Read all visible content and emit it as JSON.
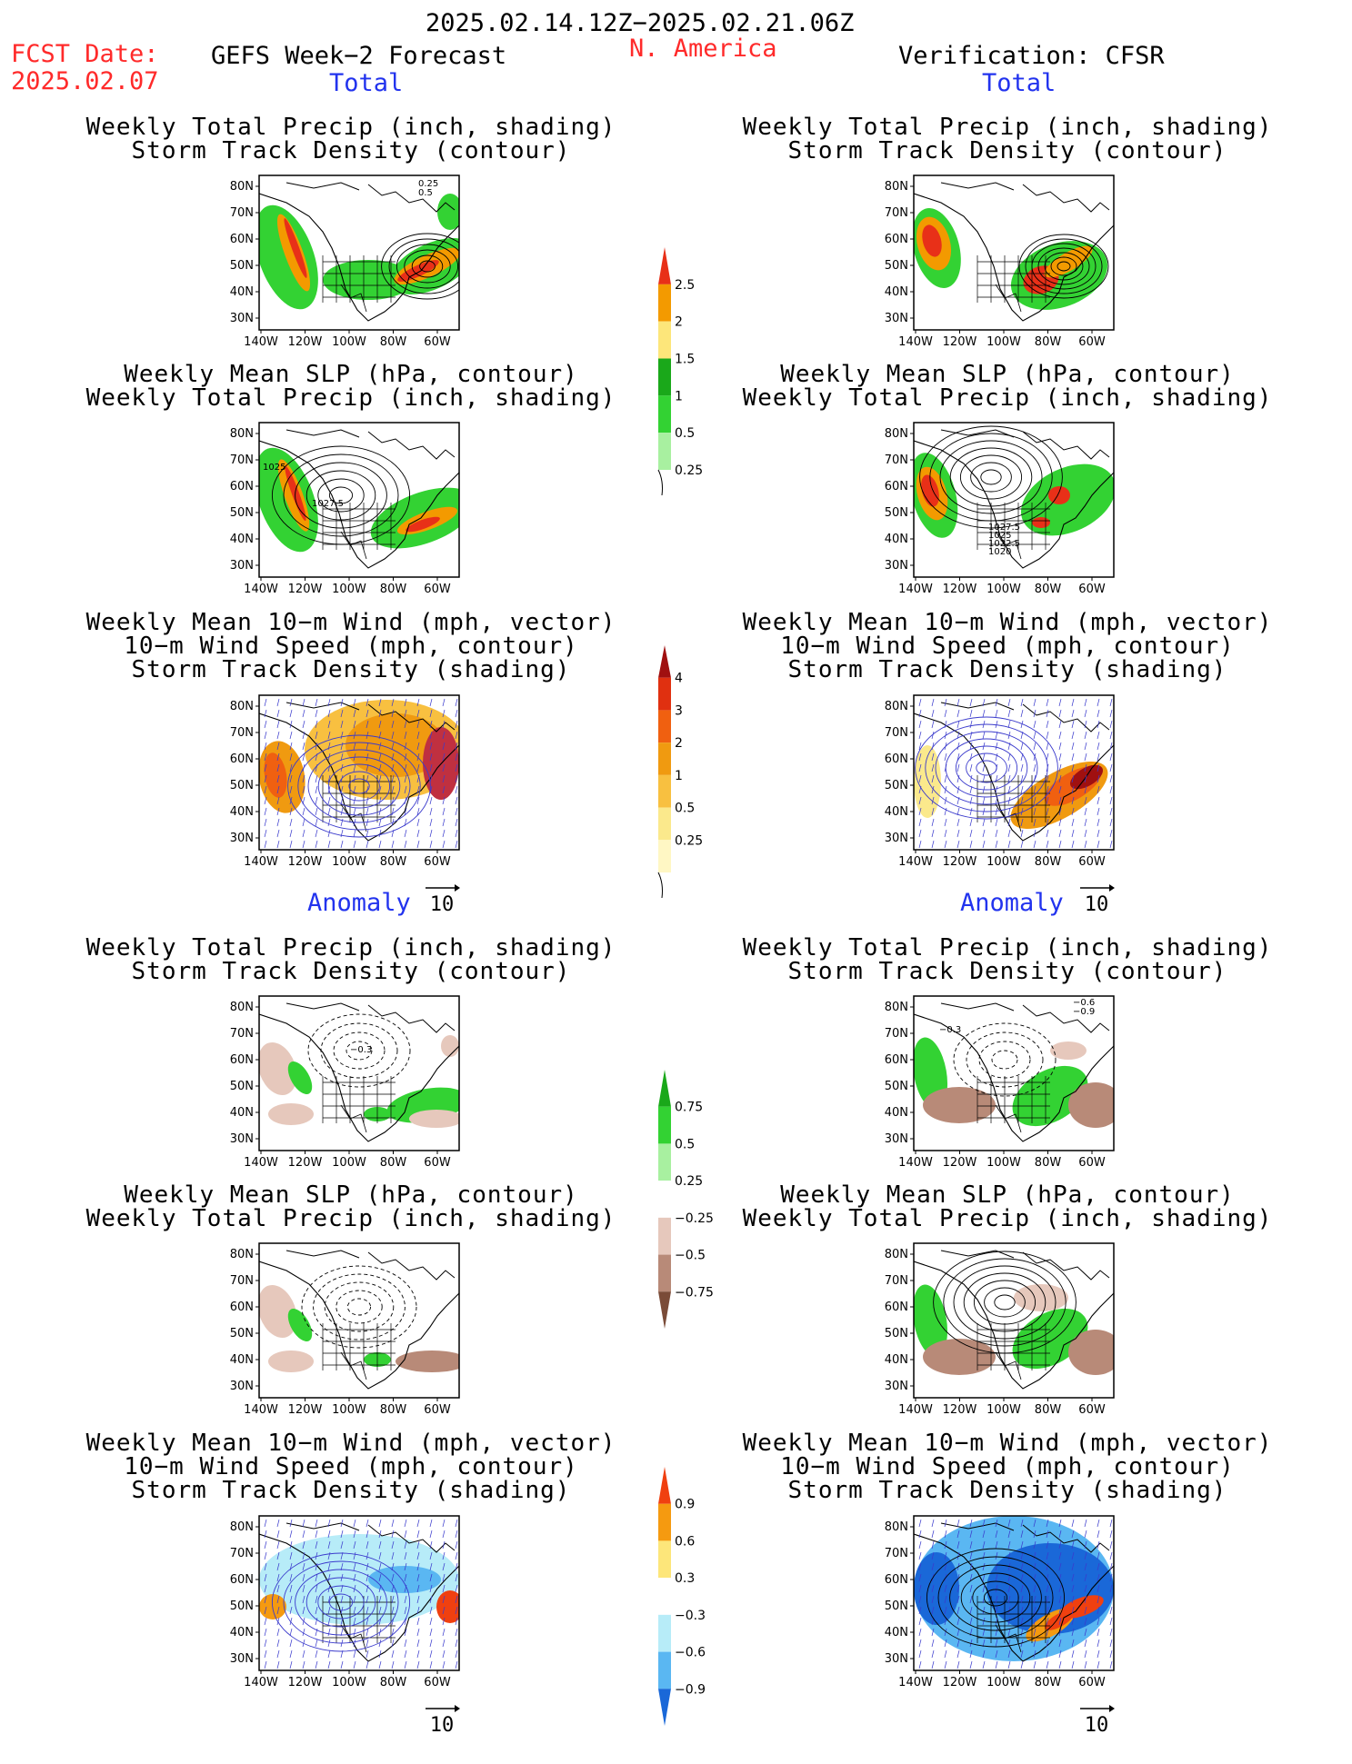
{
  "header": {
    "date_range": "2025.02.14.12Z−2025.02.21.06Z",
    "fcst_label": "FCST Date:",
    "fcst_date": "2025.02.07",
    "left_title": "GEFS Week−2 Forecast",
    "region": "N. America",
    "right_title": "Verification: CFSR"
  },
  "sections": {
    "total": "Total",
    "anomaly": "Anomaly"
  },
  "panel_titles": {
    "precip_track": [
      "Weekly Total Precip (inch, shading)",
      "Storm Track Density (contour)"
    ],
    "slp_precip": [
      "Weekly Mean SLP (hPa, contour)",
      "Weekly Total Precip (inch, shading)"
    ],
    "wind_track": [
      "Weekly Mean 10−m Wind (mph, vector)",
      "10−m Wind Speed (mph, contour)",
      "Storm Track Density (shading)"
    ]
  },
  "axes": {
    "lat_ticks": [
      "80N",
      "70N",
      "60N",
      "50N",
      "40N",
      "30N"
    ],
    "lon_ticks": [
      "140W",
      "120W",
      "100W",
      "80W",
      "60W"
    ]
  },
  "vector_ref": "10",
  "contour_labels": {
    "fcst_total_precip": [
      "0.25",
      "0.5"
    ],
    "fcst_total_slp": [
      "1025",
      "1027.5"
    ],
    "obs_total_slp": [
      "1027.5",
      "1025",
      "1022.5",
      "1020"
    ],
    "fcst_anom_precip": [
      "−0.3"
    ],
    "obs_anom_precip": [
      "−0.6",
      "−0.9",
      "−0.3"
    ]
  },
  "colorbars": {
    "precip_total": {
      "labels": [
        "2.5",
        "2",
        "1.5",
        "1",
        "0.5",
        "0.25"
      ],
      "colors": [
        "#e83018",
        "#f39a00",
        "#fde67a",
        "#1aa81a",
        "#33d233",
        "#a8f0a0"
      ]
    },
    "track_total": {
      "labels": [
        "4",
        "3",
        "2",
        "1",
        "0.5",
        "0.25"
      ],
      "colors": [
        "#a01010",
        "#e03010",
        "#f06010",
        "#f09a10",
        "#f8c040",
        "#fbe98c",
        "#fff7c4"
      ]
    },
    "precip_anom": {
      "labels": [
        "0.75",
        "0.5",
        "0.25",
        "−0.25",
        "−0.5",
        "−0.75"
      ],
      "colors": [
        "#1aa81a",
        "#33d233",
        "#a8f0a0",
        "#ffffff",
        "#e6c8bc",
        "#b88a78",
        "#7a4b38"
      ]
    },
    "track_anom": {
      "labels": [
        "0.9",
        "0.6",
        "0.3",
        "−0.3",
        "−0.6",
        "−0.9"
      ],
      "colors": [
        "#f04010",
        "#f59a10",
        "#fde67a",
        "#ffffff",
        "#b7ecf8",
        "#5ab7f2",
        "#1a68d8"
      ]
    }
  }
}
